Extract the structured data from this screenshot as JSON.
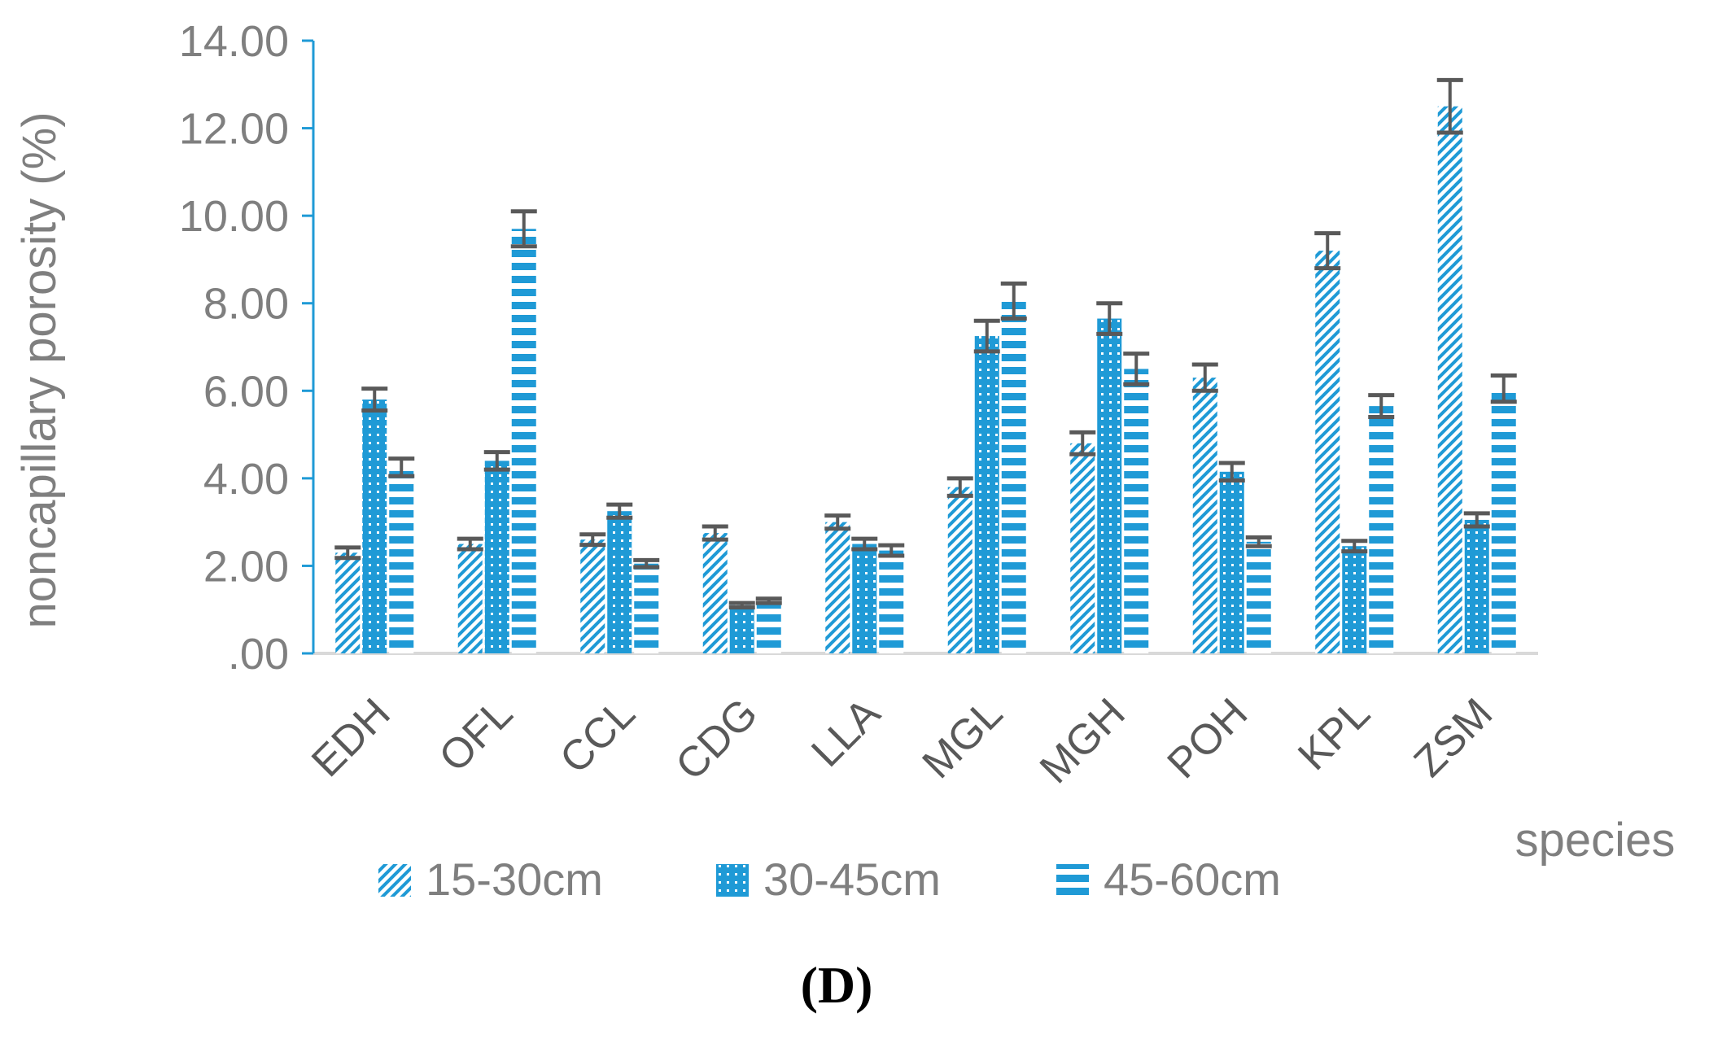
{
  "chart_data": {
    "type": "bar",
    "title": "",
    "xlabel": "species",
    "ylabel": "noncapillary porosity (%)",
    "ylim": [
      0,
      14
    ],
    "y_ticks": [
      ".00",
      "2.00",
      "4.00",
      "6.00",
      "8.00",
      "10.00",
      "12.00",
      "14.00"
    ],
    "categories": [
      "EDH",
      "OFL",
      "CCL",
      "CDG",
      "LLA",
      "MGL",
      "MGH",
      "POH",
      "KPL",
      "ZSM"
    ],
    "series": [
      {
        "name": "15-30cm",
        "pattern": "diagonal",
        "color": "#1f9ad6",
        "values": [
          2.3,
          2.5,
          2.6,
          2.75,
          3.0,
          3.8,
          4.8,
          6.3,
          9.2,
          12.5
        ],
        "errors": [
          0.12,
          0.12,
          0.12,
          0.15,
          0.15,
          0.2,
          0.25,
          0.3,
          0.4,
          0.6
        ]
      },
      {
        "name": "30-45cm",
        "pattern": "dotted",
        "color": "#1f9ad6",
        "values": [
          5.8,
          4.4,
          3.25,
          1.1,
          2.5,
          7.25,
          7.65,
          4.15,
          2.45,
          3.05
        ],
        "errors": [
          0.25,
          0.2,
          0.15,
          0.05,
          0.12,
          0.35,
          0.35,
          0.2,
          0.12,
          0.15
        ]
      },
      {
        "name": "45-60cm",
        "pattern": "dashed",
        "color": "#1f9ad6",
        "values": [
          4.25,
          9.7,
          2.05,
          1.2,
          2.35,
          8.05,
          6.5,
          2.55,
          5.65,
          6.05
        ],
        "errors": [
          0.2,
          0.4,
          0.08,
          0.05,
          0.12,
          0.4,
          0.35,
          0.1,
          0.25,
          0.3
        ]
      }
    ],
    "legend_position": "bottom",
    "grid": false,
    "panel_label": "(D)"
  }
}
